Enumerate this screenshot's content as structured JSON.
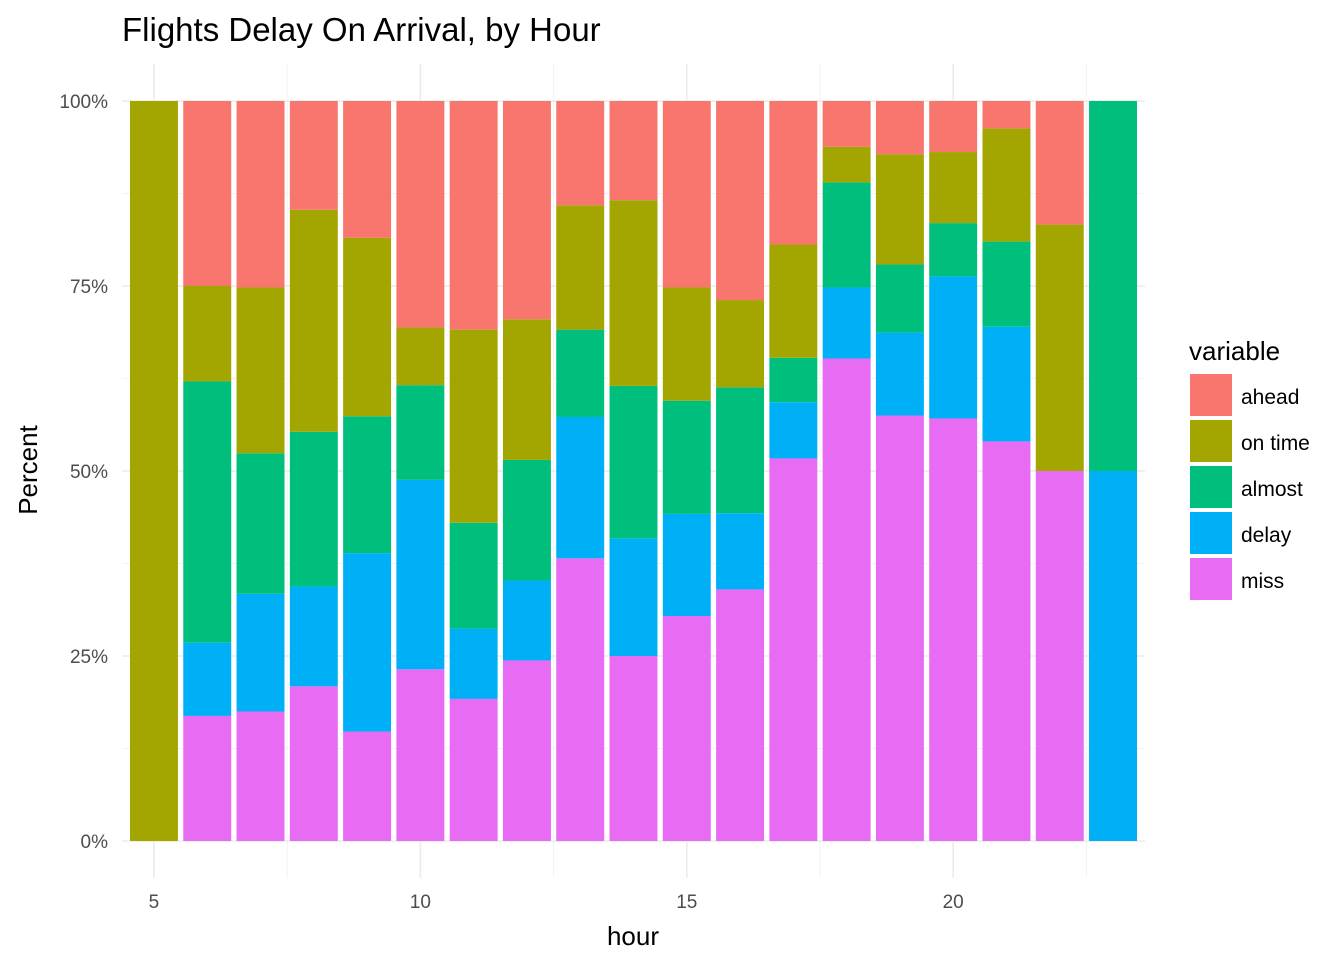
{
  "chart_data": {
    "type": "bar",
    "stacked": true,
    "normalized": true,
    "title": "Flights Delay On Arrival, by Hour",
    "xlabel": "hour",
    "ylabel": "Percent",
    "xlim": [
      4.4,
      23.6
    ],
    "ylim": [
      0,
      1
    ],
    "x_ticks": [
      5,
      10,
      15,
      20
    ],
    "x_tick_labels": [
      "5",
      "10",
      "15",
      "20"
    ],
    "y_ticks": [
      0,
      0.25,
      0.5,
      0.75,
      1
    ],
    "y_tick_labels": [
      "0%",
      "25%",
      "50%",
      "75%",
      "100%"
    ],
    "grid": true,
    "legend": {
      "title": "variable",
      "position": "right"
    },
    "categories": [
      5,
      6,
      7,
      8,
      9,
      10,
      11,
      12,
      13,
      14,
      15,
      16,
      17,
      18,
      19,
      20,
      21,
      22,
      23
    ],
    "series": [
      {
        "name": "miss",
        "color": "#E76BF3",
        "values": [
          0.0,
          0.169,
          0.175,
          0.209,
          0.148,
          0.232,
          0.192,
          0.244,
          0.382,
          0.25,
          0.304,
          0.34,
          0.517,
          0.652,
          0.575,
          0.571,
          0.54,
          0.5,
          0.0
        ]
      },
      {
        "name": "delay",
        "color": "#00B0F6",
        "values": [
          0.0,
          0.099,
          0.159,
          0.135,
          0.241,
          0.256,
          0.095,
          0.108,
          0.191,
          0.159,
          0.138,
          0.103,
          0.076,
          0.096,
          0.112,
          0.192,
          0.155,
          0.0,
          0.5
        ]
      },
      {
        "name": "almost",
        "color": "#00BF7D",
        "values": [
          0.0,
          0.353,
          0.19,
          0.209,
          0.185,
          0.128,
          0.143,
          0.163,
          0.118,
          0.206,
          0.153,
          0.17,
          0.06,
          0.142,
          0.092,
          0.072,
          0.115,
          0.0,
          0.5
        ]
      },
      {
        "name": "on time",
        "color": "#A3A500",
        "values": [
          1.0,
          0.129,
          0.224,
          0.3,
          0.241,
          0.078,
          0.261,
          0.19,
          0.168,
          0.251,
          0.153,
          0.118,
          0.153,
          0.048,
          0.149,
          0.096,
          0.153,
          0.333,
          0.0
        ]
      },
      {
        "name": "ahead",
        "color": "#F8766D",
        "values": [
          0.0,
          0.25,
          0.252,
          0.147,
          0.185,
          0.306,
          0.309,
          0.295,
          0.141,
          0.134,
          0.252,
          0.269,
          0.194,
          0.062,
          0.072,
          0.069,
          0.037,
          0.167,
          0.0
        ]
      }
    ],
    "legend_order": [
      "ahead",
      "on time",
      "almost",
      "delay",
      "miss"
    ]
  }
}
